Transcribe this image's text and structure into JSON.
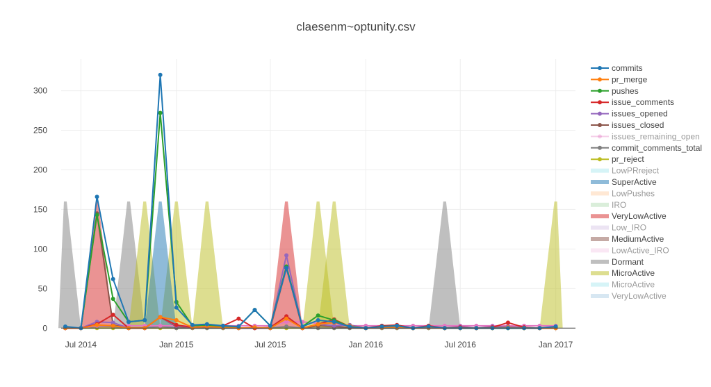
{
  "chart_data": {
    "type": "line",
    "title": "claesenm~optunity.csv",
    "xlabel": "",
    "ylabel": "",
    "x_ticks": [
      "Jul 2014",
      "Jan 2015",
      "Jul 2015",
      "Jan 2016",
      "Jul 2016",
      "Jan 2017"
    ],
    "y_ticks": [
      0,
      50,
      100,
      150,
      200,
      250,
      300
    ],
    "ylim": [
      -5,
      340
    ],
    "xlim": [
      "2014-05-24",
      "2017-02-08"
    ],
    "grid": true,
    "legend_position": "right",
    "x": [
      "2014-06-01",
      "2014-07-01",
      "2014-08-01",
      "2014-09-01",
      "2014-10-01",
      "2014-11-01",
      "2014-12-01",
      "2015-01-01",
      "2015-02-01",
      "2015-03-01",
      "2015-04-01",
      "2015-05-01",
      "2015-06-01",
      "2015-07-01",
      "2015-08-01",
      "2015-09-01",
      "2015-10-01",
      "2015-11-01",
      "2015-12-01",
      "2016-01-01",
      "2016-02-01",
      "2016-03-01",
      "2016-04-01",
      "2016-05-01",
      "2016-06-01",
      "2016-07-01",
      "2016-08-01",
      "2016-09-01",
      "2016-10-01",
      "2016-11-01",
      "2016-12-01",
      "2017-01-01"
    ],
    "series": [
      {
        "name": "commits",
        "color": "#1f77b4",
        "values": [
          2,
          0,
          166,
          62,
          8,
          10,
          320,
          26,
          4,
          5,
          3,
          2,
          23,
          3,
          76,
          2,
          10,
          8,
          2,
          0,
          2,
          3,
          0,
          2,
          0,
          0,
          0,
          0,
          0,
          0,
          0,
          2
        ]
      },
      {
        "name": "pr_merge",
        "color": "#ff7f0e",
        "values": [
          0,
          0,
          4,
          3,
          0,
          0,
          14,
          10,
          1,
          2,
          1,
          0,
          1,
          0,
          12,
          0,
          5,
          7,
          3,
          0,
          1,
          1,
          0,
          1,
          0,
          0,
          0,
          0,
          1,
          0,
          0,
          0
        ]
      },
      {
        "name": "pushes",
        "color": "#2ca02c",
        "values": [
          1,
          0,
          143,
          37,
          8,
          10,
          272,
          33,
          3,
          4,
          2,
          2,
          23,
          3,
          78,
          2,
          16,
          10,
          2,
          0,
          2,
          3,
          0,
          2,
          0,
          0,
          0,
          0,
          0,
          0,
          0,
          1
        ]
      },
      {
        "name": "issue_comments",
        "color": "#d62728",
        "values": [
          0,
          0,
          5,
          17,
          0,
          0,
          14,
          4,
          1,
          2,
          3,
          12,
          0,
          1,
          15,
          0,
          5,
          11,
          2,
          0,
          3,
          4,
          0,
          3,
          0,
          1,
          0,
          1,
          7,
          1,
          0,
          0
        ]
      },
      {
        "name": "issues_opened",
        "color": "#9467bd",
        "values": [
          0,
          0,
          8,
          7,
          0,
          0,
          14,
          3,
          1,
          2,
          1,
          0,
          0,
          0,
          92,
          0,
          5,
          3,
          4,
          0,
          1,
          1,
          0,
          1,
          0,
          2,
          0,
          2,
          2,
          1,
          0,
          2
        ]
      },
      {
        "name": "issues_closed",
        "color": "#8c564b",
        "values": [
          0,
          0,
          145,
          4,
          0,
          0,
          14,
          2,
          1,
          2,
          3,
          0,
          0,
          0,
          76,
          0,
          3,
          2,
          1,
          0,
          1,
          2,
          0,
          2,
          0,
          1,
          0,
          1,
          1,
          0,
          0,
          1
        ]
      },
      {
        "name": "issues_remaining_open",
        "color": "#e377c2",
        "values": [
          0,
          0,
          3,
          3,
          3,
          3,
          3,
          3,
          3,
          3,
          3,
          3,
          3,
          3,
          8,
          8,
          6,
          6,
          3,
          3,
          3,
          3,
          3,
          3,
          3,
          3,
          3,
          3,
          3,
          3,
          3,
          3
        ]
      },
      {
        "name": "commit_comments_total",
        "color": "#7f7f7f",
        "values": [
          0,
          0,
          2,
          2,
          0,
          0,
          2,
          0,
          0,
          0,
          0,
          0,
          0,
          0,
          2,
          0,
          0,
          0,
          0,
          0,
          0,
          0,
          0,
          0,
          0,
          0,
          0,
          0,
          0,
          0,
          0,
          0
        ]
      },
      {
        "name": "pr_reject",
        "color": "#bcbd22",
        "values": [
          0,
          0,
          0,
          0,
          0,
          0,
          0,
          0,
          0,
          0,
          0,
          0,
          0,
          0,
          0,
          0,
          0,
          0,
          0,
          0,
          0,
          0,
          0,
          0,
          0,
          0,
          0,
          0,
          0,
          0,
          0,
          0
        ]
      }
    ],
    "category_bands": [
      {
        "name": "Dormant",
        "color": "#7f7f7f",
        "months": [
          0,
          4,
          24
        ]
      },
      {
        "name": "VeryLowActive",
        "color": "#d62728",
        "months": [
          2,
          14
        ]
      },
      {
        "name": "MicroActive",
        "color": "#bcbd22",
        "months": [
          5,
          7,
          9,
          16,
          17,
          31
        ]
      },
      {
        "name": "SuperActive",
        "color": "#1f77b4",
        "months": [
          6
        ]
      }
    ],
    "legend": [
      {
        "name": "commits",
        "kind": "line",
        "color": "#1f77b4",
        "faded": false
      },
      {
        "name": "pr_merge",
        "kind": "line",
        "color": "#ff7f0e",
        "faded": false
      },
      {
        "name": "pushes",
        "kind": "line",
        "color": "#2ca02c",
        "faded": false
      },
      {
        "name": "issue_comments",
        "kind": "line",
        "color": "#d62728",
        "faded": false
      },
      {
        "name": "issues_opened",
        "kind": "line",
        "color": "#9467bd",
        "faded": false
      },
      {
        "name": "issues_closed",
        "kind": "line",
        "color": "#8c564b",
        "faded": false
      },
      {
        "name": "issues_remaining_open",
        "kind": "line",
        "color": "#e377c2",
        "faded": true
      },
      {
        "name": "commit_comments_total",
        "kind": "line",
        "color": "#7f7f7f",
        "faded": false
      },
      {
        "name": "pr_reject",
        "kind": "line",
        "color": "#bcbd22",
        "faded": false
      },
      {
        "name": "LowPRreject",
        "kind": "band",
        "color": "#17becf",
        "faded": true
      },
      {
        "name": "SuperActive",
        "kind": "band",
        "color": "#1f77b4",
        "faded": false
      },
      {
        "name": "LowPushes",
        "kind": "band",
        "color": "#ff7f0e",
        "faded": true
      },
      {
        "name": "IRO",
        "kind": "band",
        "color": "#2ca02c",
        "faded": true
      },
      {
        "name": "VeryLowActive",
        "kind": "band",
        "color": "#d62728",
        "faded": false
      },
      {
        "name": "Low_IRO",
        "kind": "band",
        "color": "#9467bd",
        "faded": true
      },
      {
        "name": "MediumActive",
        "kind": "band",
        "color": "#8c564b",
        "faded": false
      },
      {
        "name": "LowActive_IRO",
        "kind": "band",
        "color": "#e377c2",
        "faded": true
      },
      {
        "name": "Dormant",
        "kind": "band",
        "color": "#7f7f7f",
        "faded": false
      },
      {
        "name": "MicroActive",
        "kind": "band",
        "color": "#bcbd22",
        "faded": false
      },
      {
        "name": "MicroActive",
        "kind": "band",
        "color": "#17becf",
        "faded": true
      },
      {
        "name": "VeryLowActive",
        "kind": "band",
        "color": "#1f77b4",
        "faded": true
      }
    ]
  }
}
